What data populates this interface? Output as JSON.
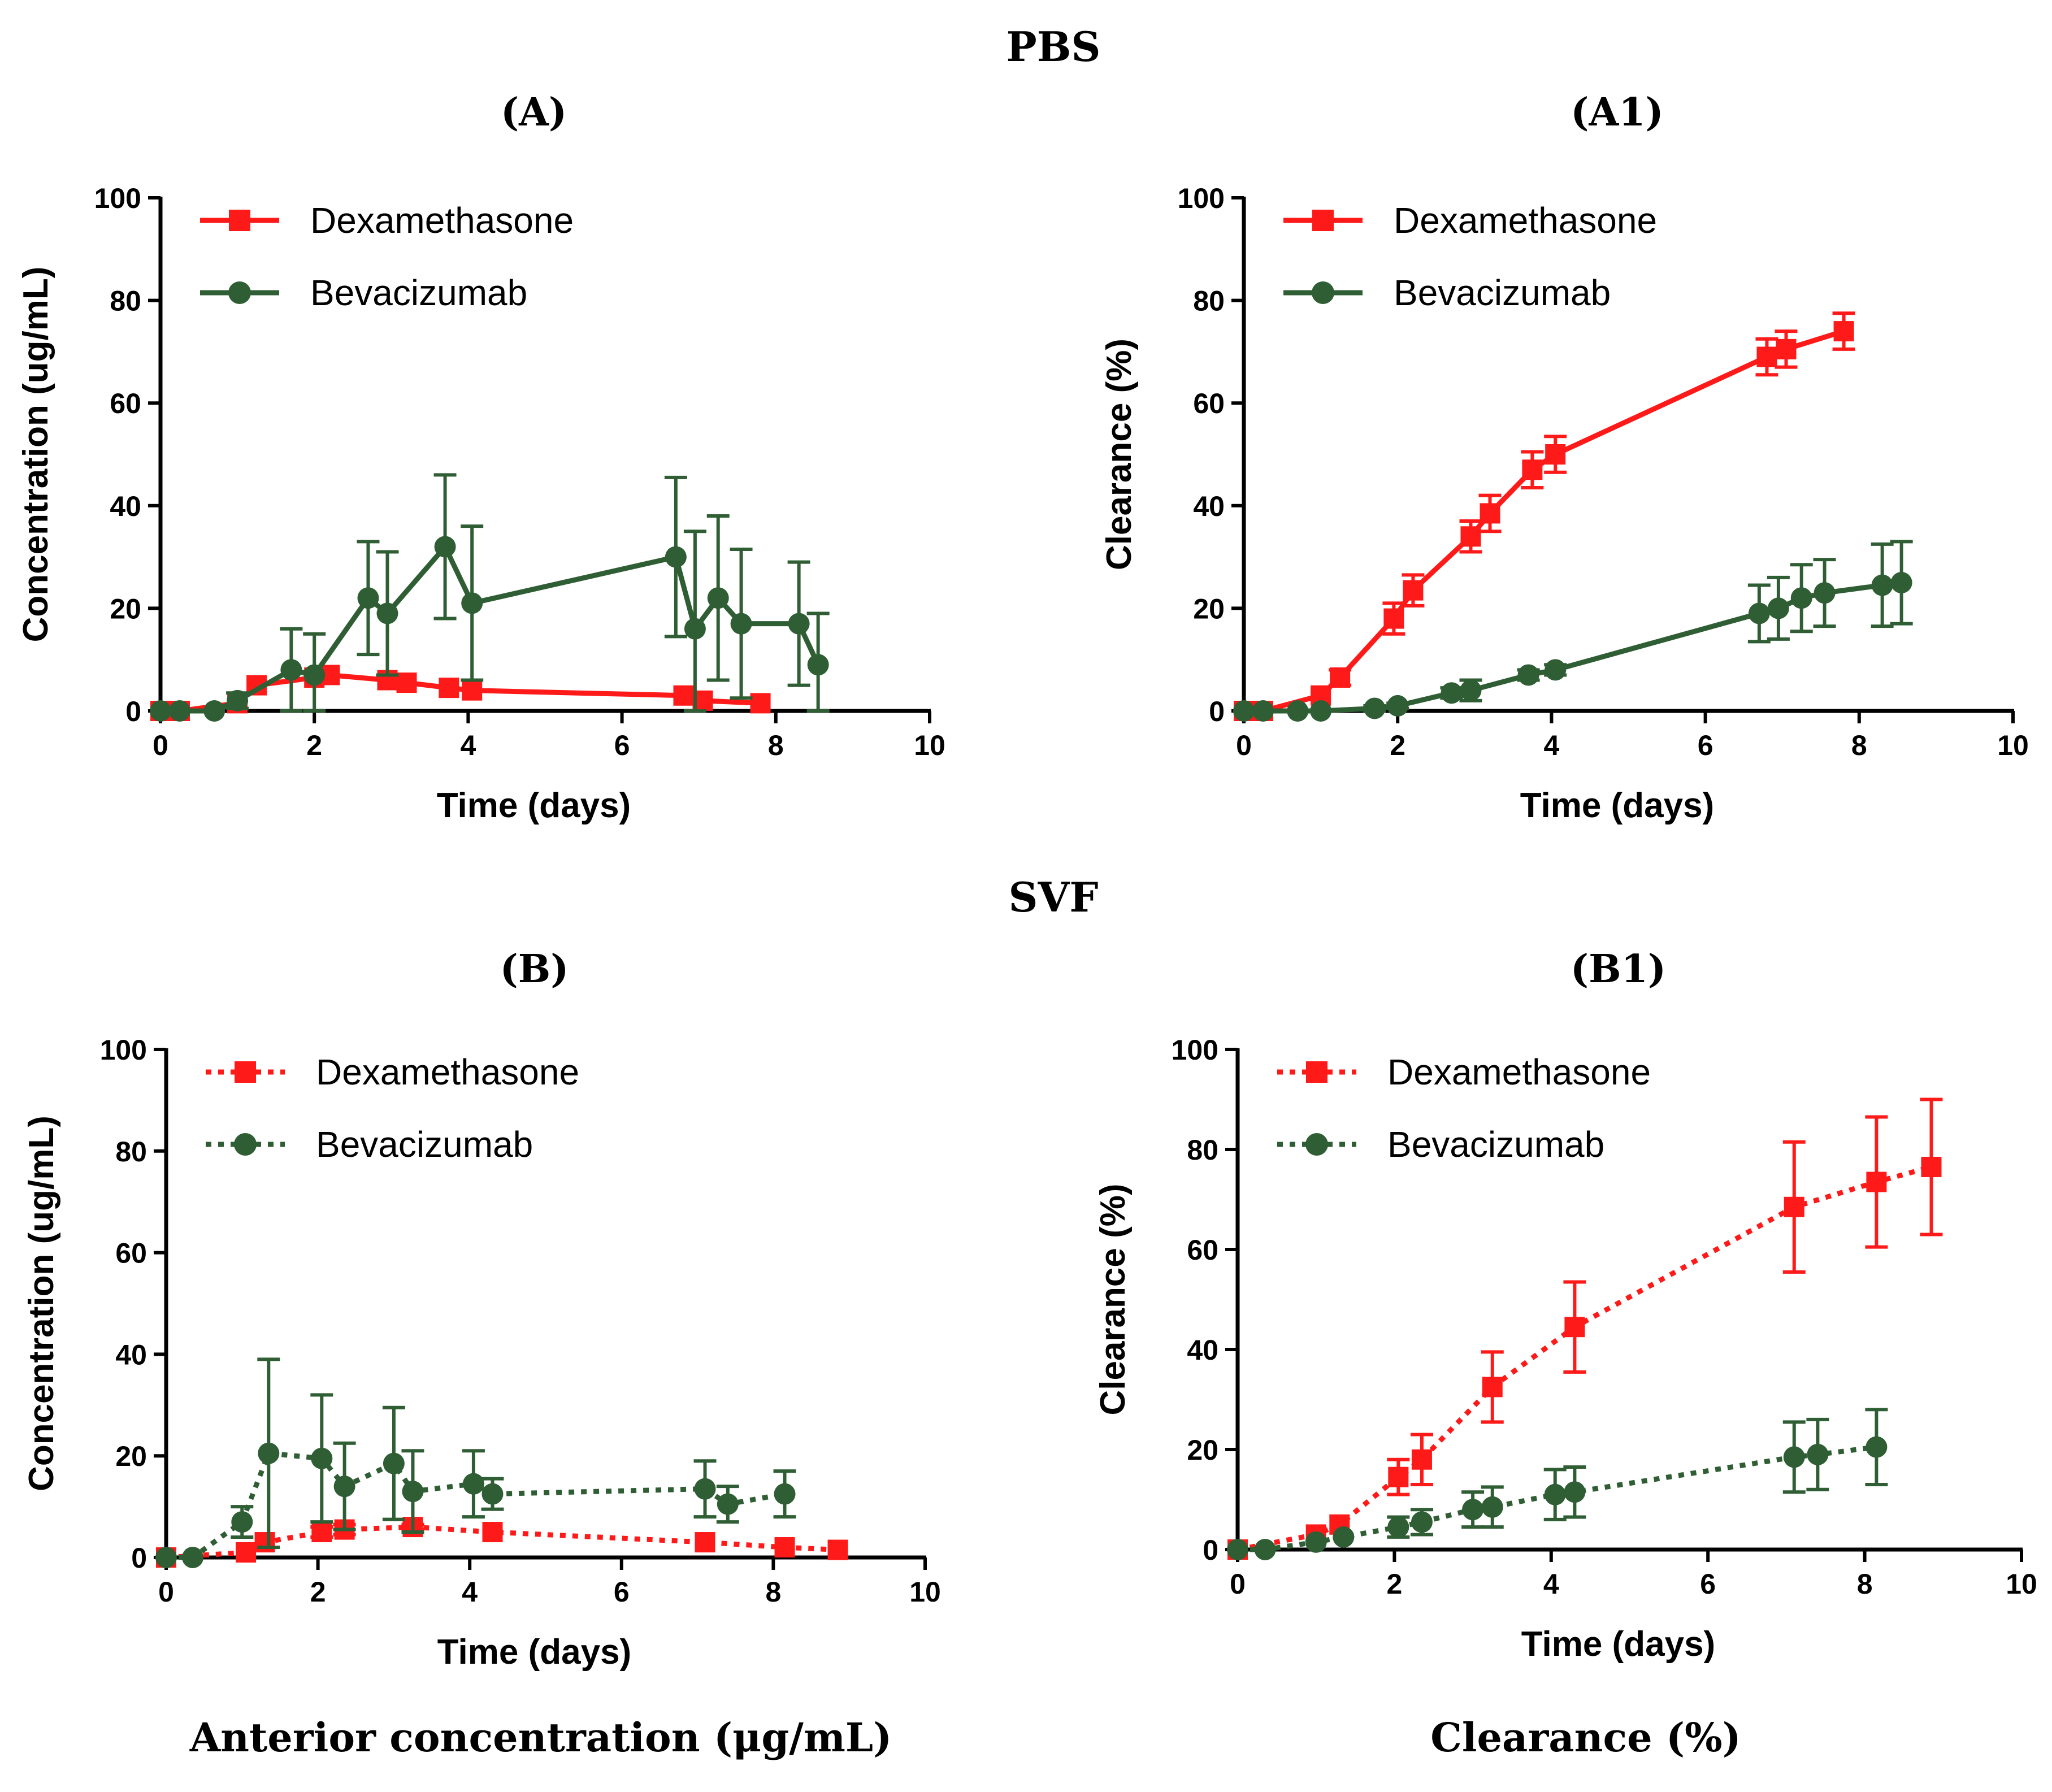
{
  "figure": {
    "section_titles": [
      "PBS",
      "SVF"
    ],
    "captions": [
      "Anterior concentration (μg/mL)",
      "Clearance (%)"
    ]
  },
  "colors": {
    "dexamethasone": "#ff1a1a",
    "bevacizumab": "#2f5e34",
    "axis": "#000000"
  },
  "chart_data": [
    {
      "id": "A",
      "title": "(A)",
      "type": "line",
      "line_style": "solid",
      "xlabel": "Time (days)",
      "ylabel": "Concentration (ug/mL)",
      "xlim": [
        0,
        10
      ],
      "ylim": [
        0,
        100
      ],
      "xticks": [
        0,
        2,
        4,
        6,
        8,
        10
      ],
      "yticks": [
        0,
        20,
        40,
        60,
        80,
        100
      ],
      "legend_position": "top-left",
      "series": [
        {
          "name": "Dexamethasone",
          "marker": "square",
          "color_key": "dexamethasone",
          "x": [
            0,
            0.25,
            1,
            1.25,
            2,
            2.2,
            2.95,
            3.2,
            3.75,
            4.05,
            6.8,
            7.05,
            7.8
          ],
          "y": [
            0,
            0,
            1.5,
            5,
            6.5,
            7,
            6,
            5.5,
            4.5,
            4,
            3,
            2,
            1.5
          ],
          "err": [
            0,
            0,
            0,
            0,
            0,
            0,
            0,
            0,
            0,
            0,
            0,
            0,
            0
          ]
        },
        {
          "name": "Bevacizumab",
          "marker": "circle",
          "color_key": "bevacizumab",
          "x": [
            0,
            0.25,
            0.7,
            1,
            1.7,
            2,
            2.7,
            2.95,
            3.7,
            4.05,
            6.7,
            6.95,
            7.25,
            7.55,
            8.3,
            8.55
          ],
          "y": [
            0,
            0,
            0,
            2,
            8,
            7,
            22,
            19,
            32,
            21,
            30,
            16,
            22,
            17,
            17,
            9
          ],
          "err": [
            0,
            0,
            0,
            1.5,
            8,
            8,
            11,
            12,
            14,
            15,
            15.5,
            19,
            16,
            14.5,
            12,
            10
          ]
        }
      ]
    },
    {
      "id": "A1",
      "title": "(A1)",
      "type": "line",
      "line_style": "solid",
      "xlabel": "Time (days)",
      "ylabel": "Clearance (%)",
      "xlim": [
        0,
        10
      ],
      "ylim": [
        0,
        100
      ],
      "xticks": [
        0,
        2,
        4,
        6,
        8,
        10
      ],
      "yticks": [
        0,
        20,
        40,
        60,
        80,
        100
      ],
      "legend_position": "top-left",
      "series": [
        {
          "name": "Dexamethasone",
          "marker": "square",
          "color_key": "dexamethasone",
          "x": [
            0,
            0.25,
            1,
            1.25,
            1.95,
            2.2,
            2.95,
            3.2,
            3.75,
            4.05,
            6.8,
            7.05,
            7.8
          ],
          "y": [
            0,
            0,
            3,
            6.5,
            18,
            23.5,
            34,
            38.5,
            47,
            50,
            69,
            70.5,
            74
          ],
          "err": [
            0,
            0,
            0,
            1.5,
            3,
            3,
            3,
            3.5,
            3.5,
            3.5,
            3.5,
            3.5,
            3.5
          ]
        },
        {
          "name": "Bevacizumab",
          "marker": "circle",
          "color_key": "bevacizumab",
          "x": [
            0,
            0.25,
            0.7,
            1,
            1.7,
            2,
            2.7,
            2.95,
            3.7,
            4.05,
            6.7,
            6.95,
            7.25,
            7.55,
            8.3,
            8.55
          ],
          "y": [
            0,
            0,
            0,
            0,
            0.5,
            1,
            3.5,
            4,
            7,
            8,
            19,
            20,
            22,
            23,
            24.5,
            25
          ],
          "err": [
            0,
            0,
            0,
            0,
            0.5,
            0.5,
            1,
            2,
            1,
            1,
            5.5,
            6,
            6.5,
            6.5,
            8,
            8
          ]
        }
      ]
    },
    {
      "id": "B",
      "title": "(B)",
      "type": "line",
      "line_style": "dotted",
      "xlabel": "Time (days)",
      "ylabel": "Concentration (ug/mL)",
      "xlim": [
        0,
        10
      ],
      "ylim": [
        0,
        100
      ],
      "xticks": [
        0,
        2,
        4,
        6,
        8,
        10
      ],
      "yticks": [
        0,
        20,
        40,
        60,
        80,
        100
      ],
      "legend_position": "top-left",
      "series": [
        {
          "name": "Dexamethasone",
          "marker": "square",
          "color_key": "dexamethasone",
          "x": [
            0,
            1.05,
            1.3,
            2.05,
            2.35,
            3.25,
            4.3,
            7.1,
            8.15,
            8.85
          ],
          "y": [
            0,
            1,
            3,
            5,
            5.5,
            6,
            5,
            3,
            2,
            1.5
          ],
          "err": [
            0,
            0,
            0,
            1,
            1,
            0.5,
            0,
            0,
            0,
            0
          ]
        },
        {
          "name": "Bevacizumab",
          "marker": "circle",
          "color_key": "bevacizumab",
          "x": [
            0,
            0.35,
            1,
            1.35,
            2.05,
            2.35,
            3,
            3.25,
            4.05,
            4.3,
            7.1,
            7.4,
            8.15
          ],
          "y": [
            0,
            0,
            7,
            20.5,
            19.5,
            14,
            18.5,
            13,
            14.5,
            12.5,
            13.5,
            10.5,
            12.5
          ],
          "err": [
            0,
            0,
            3,
            18.5,
            12.5,
            8.5,
            11,
            8,
            6.5,
            3,
            5.5,
            3.5,
            4.5
          ]
        }
      ]
    },
    {
      "id": "B1",
      "title": "(B1)",
      "type": "line",
      "line_style": "dotted",
      "xlabel": "Time (days)",
      "ylabel": "Clearance (%)",
      "xlim": [
        0,
        10
      ],
      "ylim": [
        0,
        100
      ],
      "xticks": [
        0,
        2,
        4,
        6,
        8,
        10
      ],
      "yticks": [
        0,
        20,
        40,
        60,
        80,
        100
      ],
      "legend_position": "top-left",
      "series": [
        {
          "name": "Dexamethasone",
          "marker": "square",
          "color_key": "dexamethasone",
          "x": [
            0,
            1,
            1.3,
            2.05,
            2.35,
            3.25,
            4.3,
            7.1,
            8.15,
            8.85
          ],
          "y": [
            0,
            3,
            5,
            14.5,
            18,
            32.5,
            44.5,
            68.5,
            73.5,
            76.5
          ],
          "err": [
            0,
            0,
            0,
            3.5,
            5,
            7,
            9,
            13,
            13,
            13.5
          ]
        },
        {
          "name": "Bevacizumab",
          "marker": "circle",
          "color_key": "bevacizumab",
          "x": [
            0,
            0.35,
            1,
            1.35,
            2.05,
            2.35,
            3,
            3.25,
            4.05,
            4.3,
            7.1,
            7.4,
            8.15
          ],
          "y": [
            0,
            0,
            1.5,
            2.5,
            4.5,
            5.5,
            8,
            8.5,
            11,
            11.5,
            18.5,
            19,
            20.5
          ],
          "err": [
            0,
            0,
            0,
            0,
            2,
            2.5,
            3.5,
            4,
            5,
            5,
            7,
            7,
            7.5
          ]
        }
      ]
    }
  ]
}
